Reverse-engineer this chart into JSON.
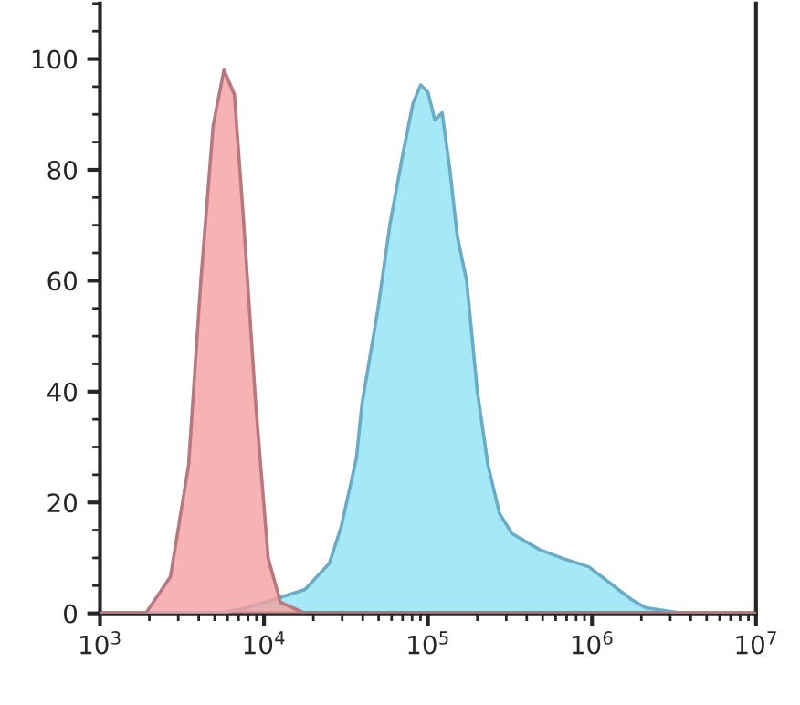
{
  "chart_data": {
    "type": "area",
    "log": "x",
    "grid": false,
    "legend": false,
    "xlim": [
      1000,
      10000000
    ],
    "xticks": [
      {
        "value": 1000,
        "label": "10$^{3}$"
      },
      {
        "value": 10000,
        "label": "10$^{4}$"
      },
      {
        "value": 100000,
        "label": "10$^{5}$"
      },
      {
        "value": 1000000,
        "label": "10$^{6}$"
      },
      {
        "value": 10000000,
        "label": "10$^{7}$"
      }
    ],
    "ylim": [
      0,
      110
    ],
    "yticks": [
      0,
      20,
      40,
      60,
      80,
      100
    ],
    "series": [
      {
        "color": "#8ee4f7",
        "x": [
          1000,
          5400,
          7800,
          11500,
          17800,
          25000,
          29500,
          36600,
          39600,
          49300,
          58500,
          69800,
          81000,
          90200,
          100000,
          110000,
          122000,
          136000,
          151000,
          172000,
          200000,
          232000,
          273000,
          325000,
          480000,
          650000,
          955000,
          1350000,
          1740000,
          2130000,
          3570000,
          10000000
        ],
        "values": [
          0,
          0,
          1,
          2.5,
          4.3,
          9,
          15.5,
          28,
          37.8,
          54.5,
          70,
          82.4,
          92,
          95.3,
          94,
          89,
          90.3,
          80,
          68,
          60,
          40,
          26.8,
          18,
          14.4,
          11.5,
          10,
          8.4,
          5,
          2.5,
          1,
          0,
          0
        ]
      },
      {
        "color": "#f5a0a0",
        "x": [
          1000,
          1900,
          2690,
          3470,
          4120,
          4900,
          5700,
          6600,
          7500,
          8900,
          10600,
          12600,
          17800,
          10000000
        ],
        "values": [
          0,
          0,
          6.6,
          26.8,
          60,
          88,
          98,
          93.6,
          71,
          37.8,
          10,
          2,
          0,
          0
        ]
      }
    ]
  }
}
